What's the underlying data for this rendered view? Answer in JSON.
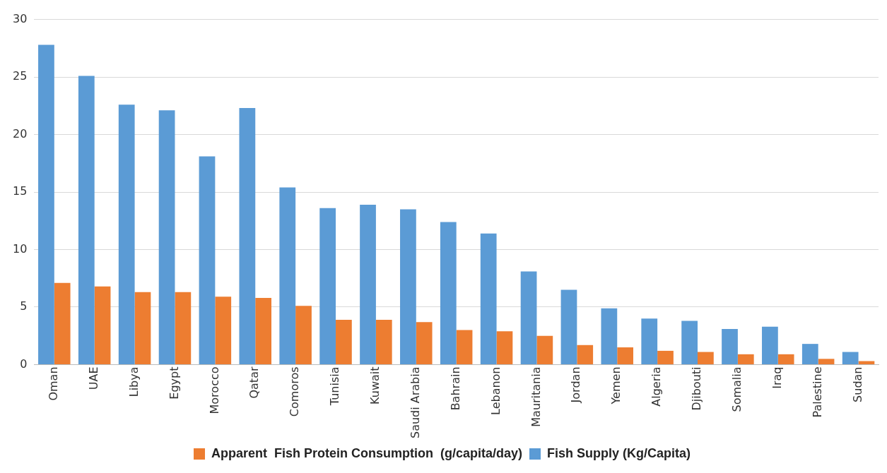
{
  "chart_data": {
    "type": "bar",
    "categories": [
      "Oman",
      "UAE",
      "Libya",
      "Egypt",
      "Morocco",
      "Qatar",
      "Comoros",
      "Tunisia",
      "Kuwait",
      "Saudi Arabia",
      "Bahrain",
      "Lebanon",
      "Mauritania",
      "Jordan",
      "Yemen",
      "Algeria",
      "Djibouti",
      "Somalia",
      "Iraq",
      "Palestine",
      "Sudan"
    ],
    "series": [
      {
        "name": "Fish Supply (Kg/Capita)",
        "color": "#5b9bd5",
        "values": [
          27.8,
          25.1,
          22.6,
          22.1,
          18.1,
          22.3,
          15.4,
          13.6,
          13.9,
          13.5,
          12.4,
          11.4,
          8.1,
          6.5,
          4.9,
          4.0,
          3.8,
          3.1,
          3.3,
          1.8,
          1.1
        ]
      },
      {
        "name": "Apparent  Fish Protein Consumption  (g/capita/day)",
        "color": "#ed7d31",
        "values": [
          7.1,
          6.8,
          6.3,
          6.3,
          5.9,
          5.8,
          5.1,
          3.9,
          3.9,
          3.7,
          3.0,
          2.9,
          2.5,
          1.7,
          1.5,
          1.2,
          1.1,
          0.9,
          0.9,
          0.5,
          0.3
        ]
      }
    ],
    "ylim": [
      0,
      30
    ],
    "yticks": [
      0,
      5,
      10,
      15,
      20,
      25,
      30
    ],
    "grid": "y",
    "legend": "bottom"
  }
}
